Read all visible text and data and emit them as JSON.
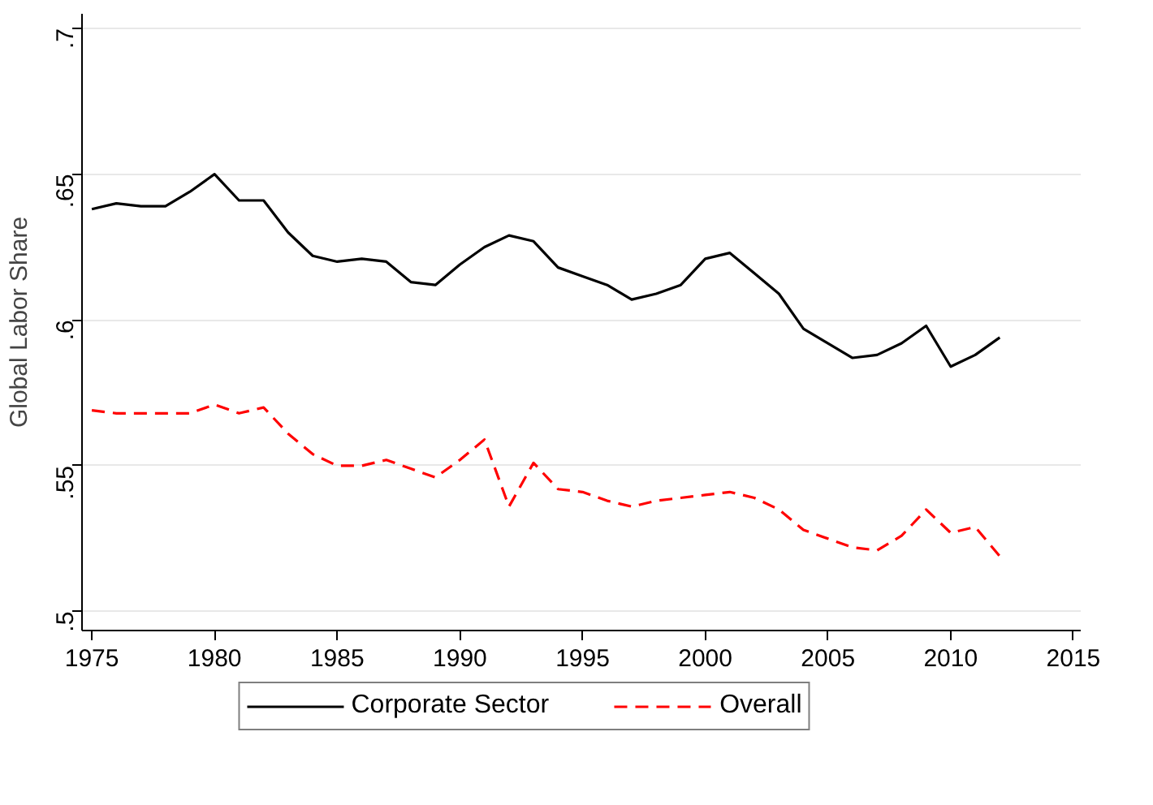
{
  "chart_data": {
    "type": "line",
    "ylabel": "Global Labor Share",
    "x": [
      1975,
      1976,
      1977,
      1978,
      1979,
      1980,
      1981,
      1982,
      1983,
      1984,
      1985,
      1986,
      1987,
      1988,
      1989,
      1990,
      1991,
      1992,
      1993,
      1994,
      1995,
      1996,
      1997,
      1998,
      1999,
      2000,
      2001,
      2002,
      2003,
      2004,
      2005,
      2006,
      2007,
      2008,
      2009,
      2010,
      2011,
      2012
    ],
    "series": [
      {
        "name": "Corporate Sector",
        "color": "#000000",
        "line_style": "solid",
        "values": [
          0.638,
          0.64,
          0.639,
          0.639,
          0.644,
          0.65,
          0.641,
          0.641,
          0.63,
          0.622,
          0.62,
          0.621,
          0.62,
          0.613,
          0.612,
          0.619,
          0.625,
          0.629,
          0.627,
          0.618,
          0.615,
          0.612,
          0.607,
          0.609,
          0.612,
          0.621,
          0.623,
          0.616,
          0.609,
          0.597,
          0.592,
          0.587,
          0.588,
          0.592,
          0.598,
          0.584,
          0.588,
          0.594
        ]
      },
      {
        "name": "Overall",
        "color": "#ff0000",
        "line_style": "dashed",
        "values": [
          0.569,
          0.568,
          0.568,
          0.568,
          0.568,
          0.571,
          0.568,
          0.57,
          0.561,
          0.554,
          0.55,
          0.55,
          0.552,
          0.549,
          0.546,
          0.552,
          0.559,
          0.536,
          0.551,
          0.542,
          0.541,
          0.538,
          0.536,
          0.538,
          0.539,
          0.54,
          0.541,
          0.539,
          0.535,
          0.528,
          0.525,
          0.522,
          0.521,
          0.526,
          0.535,
          0.527,
          0.529,
          0.519
        ]
      }
    ],
    "xlim": [
      1974.6,
      2015.3
    ],
    "ylim": [
      0.4935,
      0.705
    ],
    "xticks": [
      1975,
      1980,
      1985,
      1990,
      1995,
      2000,
      2005,
      2010,
      2015
    ],
    "yticks": [
      {
        "value": 0.5,
        "label": ".5"
      },
      {
        "value": 0.55,
        "label": ".55"
      },
      {
        "value": 0.6,
        "label": ".6"
      },
      {
        "value": 0.65,
        "label": ".65"
      },
      {
        "value": 0.7,
        "label": ".7"
      }
    ],
    "grid": "y",
    "legend": "bottom",
    "marker": "none"
  }
}
